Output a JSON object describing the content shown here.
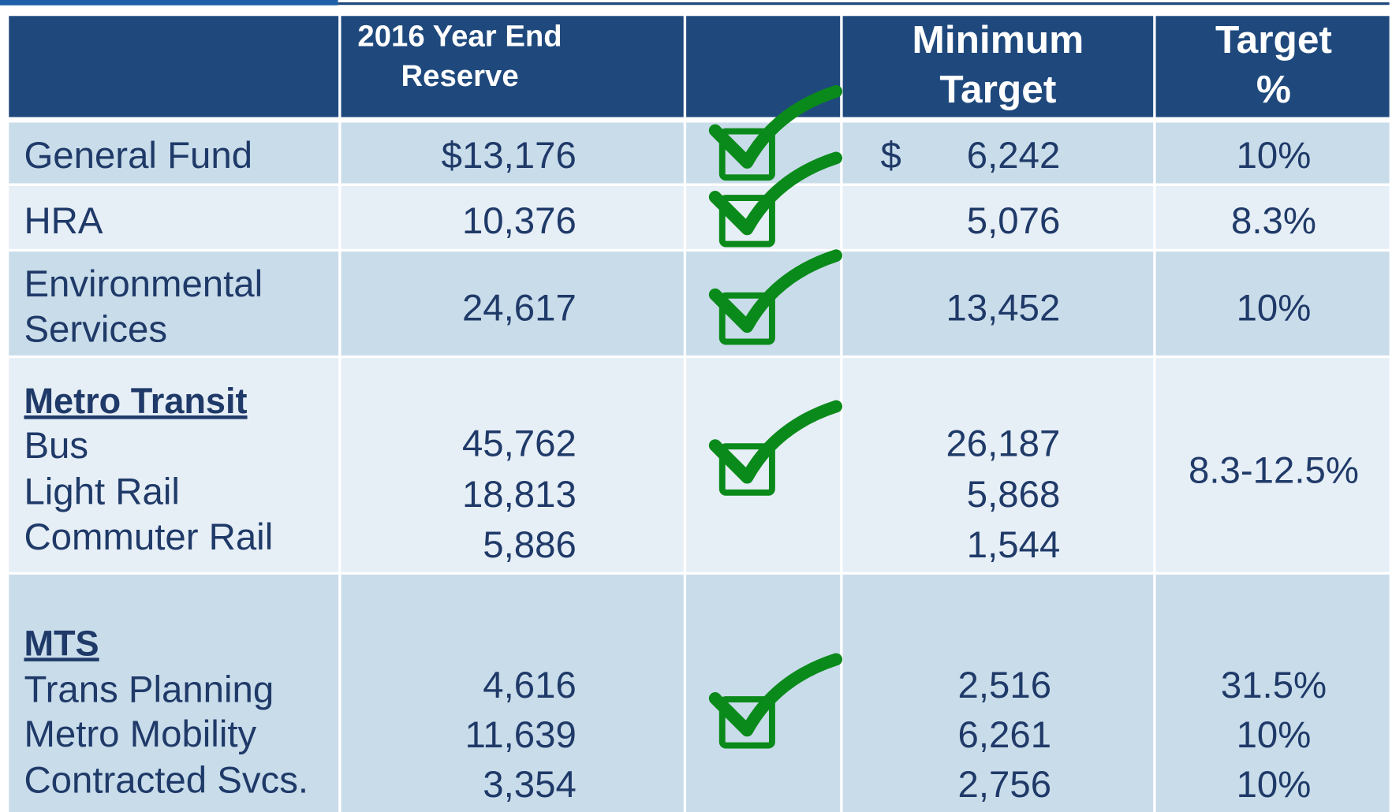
{
  "table": {
    "header": [
      {
        "lines": [
          "2016 Year End",
          "Reserve"
        ]
      },
      {
        "lines": [
          "Minimum",
          "Target"
        ]
      },
      {
        "lines": [
          "Target",
          "%"
        ]
      }
    ],
    "rows": [
      {
        "label": [
          "General Fund"
        ],
        "reserve": [
          "$13,176"
        ],
        "currency": "$",
        "target": [
          "6,242"
        ],
        "percent": [
          "10%"
        ]
      },
      {
        "label": [
          "HRA"
        ],
        "reserve": [
          "10,376"
        ],
        "target": [
          "5,076"
        ],
        "percent": [
          "8.3%"
        ]
      },
      {
        "label": [
          "Environmental",
          "Services"
        ],
        "reserve": [
          "24,617"
        ],
        "target": [
          "13,452"
        ],
        "percent": [
          "10%"
        ]
      },
      {
        "heading": "Metro Transit",
        "label": [
          "Bus",
          "Light Rail",
          "Commuter Rail"
        ],
        "reserve": [
          "45,762",
          "18,813",
          "5,886"
        ],
        "target": [
          "26,187",
          "5,868",
          "1,544"
        ],
        "percent": [
          "8.3-12.5%"
        ]
      },
      {
        "heading": "MTS",
        "label": [
          "Trans Planning",
          "Metro Mobility",
          "Contracted Svcs."
        ],
        "reserve": [
          "4,616",
          "11,639",
          "3,354"
        ],
        "target": [
          "2,516",
          "6,261",
          "2,756"
        ],
        "percent": [
          "31.5%",
          "10%",
          "10%"
        ]
      }
    ]
  }
}
